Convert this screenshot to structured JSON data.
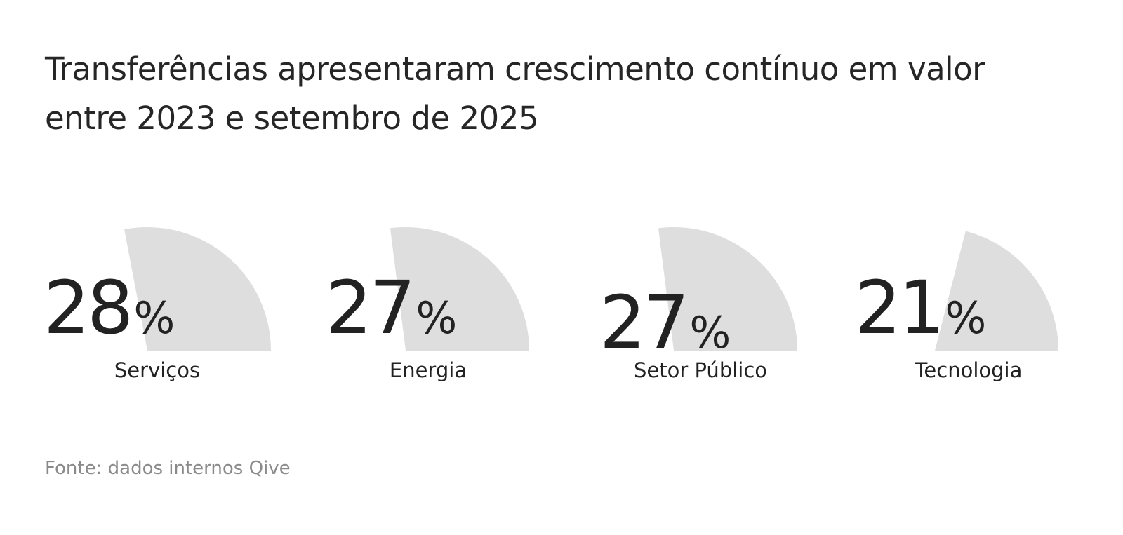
{
  "title": "Transferências apresentaram crescimento contínuo em valor entre 2023 e setembro de 2025",
  "source": "Fonte: dados internos Qive",
  "colors": {
    "sector_fill": "#dedede",
    "text": "#222222",
    "source_text": "#8a8a8a"
  },
  "chart_data": {
    "type": "pie",
    "unit": "%",
    "categories": [
      "Serviços",
      "Energia",
      "Setor Público",
      "Tecnologia"
    ],
    "values": [
      28,
      27,
      27,
      21
    ],
    "value_labels": [
      "28",
      "27",
      "27",
      "21"
    ]
  }
}
